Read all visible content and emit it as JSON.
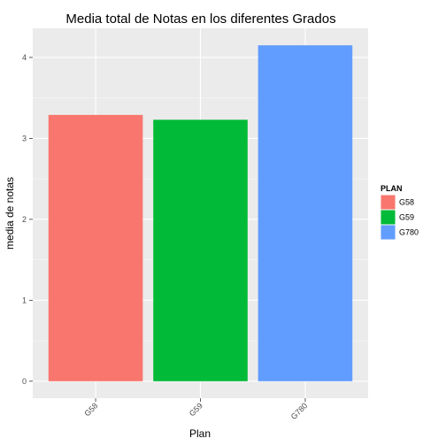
{
  "chart_data": {
    "type": "bar",
    "title": "Media total de Notas en los diferentes Grados",
    "xlabel": "Plan",
    "ylabel": "media de notas",
    "categories": [
      "G58",
      "G59",
      "G780"
    ],
    "values": [
      3.29,
      3.23,
      4.15
    ],
    "colors": [
      "#F8766D",
      "#00BA38",
      "#619CFF"
    ],
    "yticks": [
      0,
      1,
      2,
      3,
      4
    ],
    "ylim": [
      -0.21,
      4.36
    ],
    "grid": true,
    "legend": {
      "title": "PLAN",
      "placement": "right",
      "entries": [
        "G58",
        "G59",
        "G780"
      ]
    },
    "panel_background": "#EBEBEB",
    "grid_color": "#FFFFFF"
  }
}
